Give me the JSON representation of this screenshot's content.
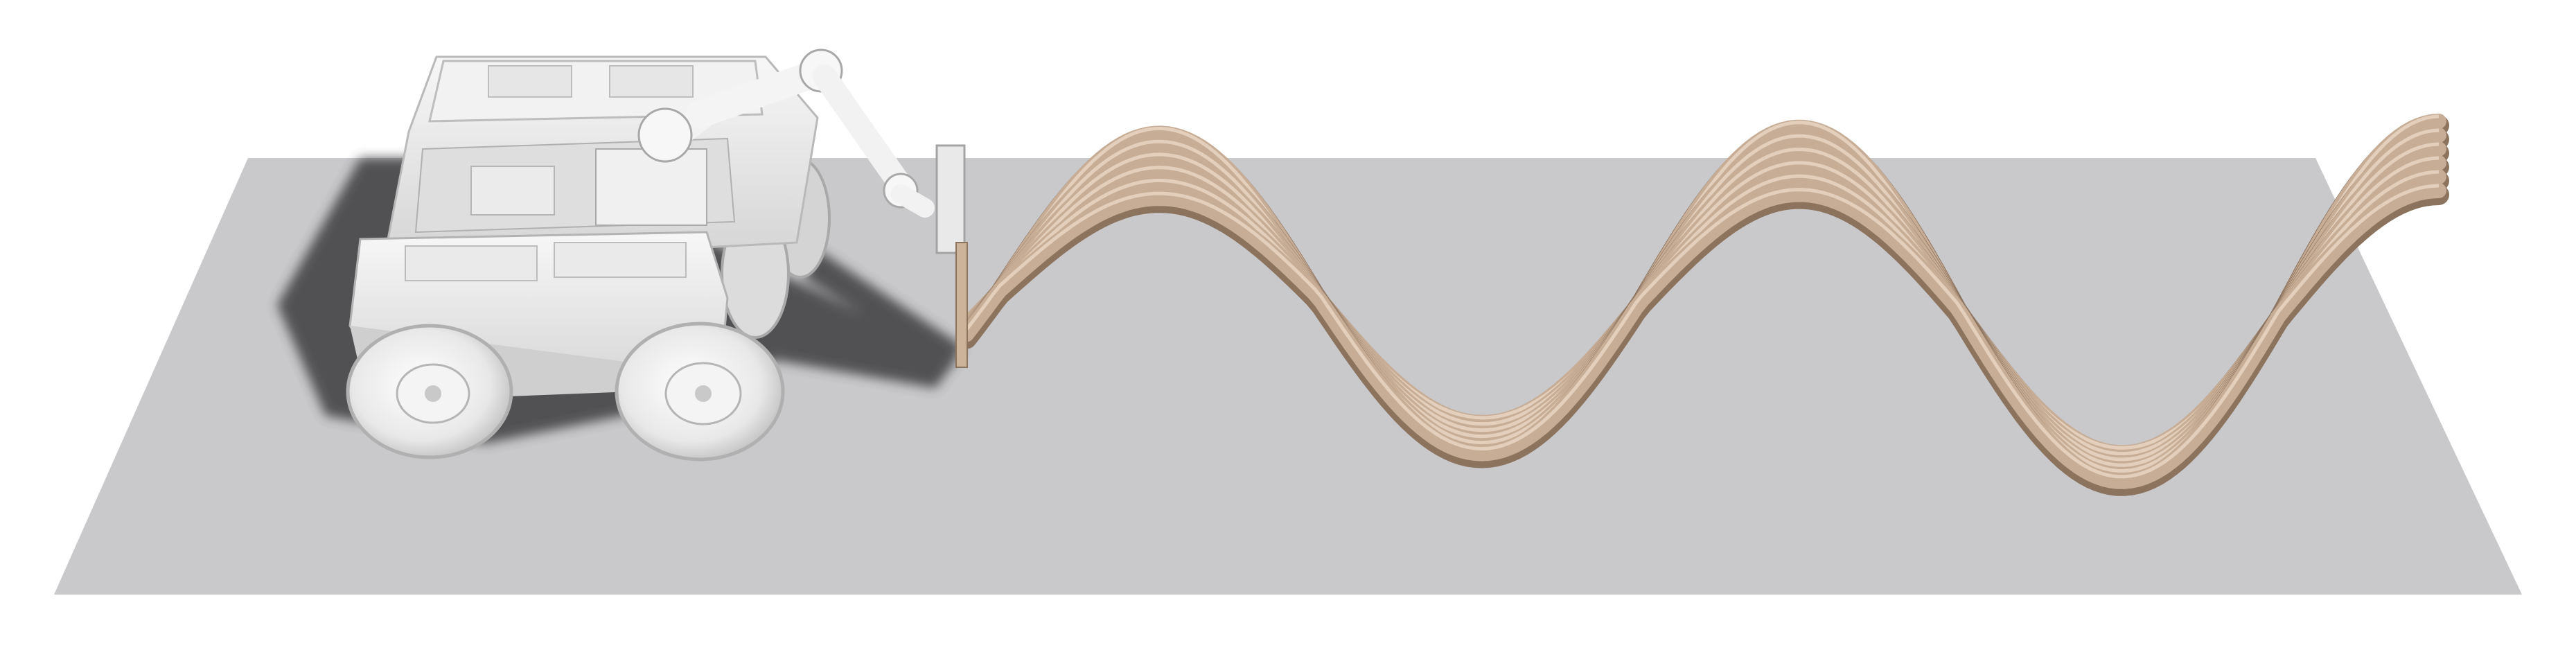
{
  "scene": {
    "ground_color": "#c9c9cb",
    "material_color": "#c7ad95",
    "material_shadow": "#8c735e",
    "material_highlight": "#e3cfbc",
    "robot_body": "#eeeeee",
    "robot_shade": "#cfcfcf",
    "robot_dark": "#9a9a9a",
    "shadow_color": "#3e3e40",
    "layer_count": 6
  }
}
